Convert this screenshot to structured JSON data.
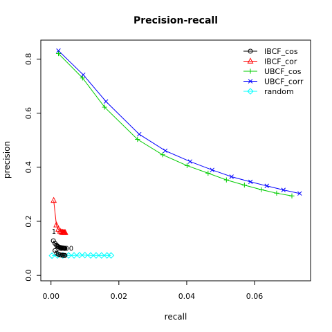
{
  "chart_data": {
    "type": "line",
    "title": "Precision-recall",
    "xlabel": "recall",
    "ylabel": "precision",
    "xlim": [
      -0.003,
      0.0765
    ],
    "ylim": [
      -0.02,
      0.87
    ],
    "xticks": [
      0.0,
      0.02,
      0.04,
      0.06
    ],
    "xtick_labels": [
      "0.00",
      "0.02",
      "0.04",
      "0.06"
    ],
    "yticks": [
      0.0,
      0.2,
      0.4,
      0.6,
      0.8
    ],
    "ytick_labels": [
      "0.0",
      "0.2",
      "0.4",
      "0.6",
      "0.8"
    ],
    "grid": false,
    "legend_position": "top-right",
    "series": [
      {
        "name": "IBCF_cos",
        "color": "#000000",
        "marker": "circle",
        "x": [
          0.0007,
          0.0012,
          0.0016,
          0.0019,
          0.0022,
          0.0025,
          0.0028,
          0.003,
          0.0032,
          0.0034,
          0.0036,
          0.0037,
          0.0038,
          0.0039,
          0.004,
          0.0041
        ],
        "y": [
          0.128,
          0.118,
          0.112,
          0.108,
          0.106,
          0.104,
          0.103,
          0.102,
          0.102,
          0.101,
          0.101,
          0.101,
          0.101,
          0.1,
          0.1,
          0.1
        ]
      },
      {
        "name": "IBCF_cor",
        "color": "#ff0000",
        "marker": "triangle",
        "x": [
          0.0008,
          0.0016,
          0.0022,
          0.0027,
          0.0031,
          0.0034,
          0.0036,
          0.0038,
          0.004,
          0.0042
        ],
        "y": [
          0.277,
          0.186,
          0.17,
          0.163,
          0.16,
          0.159,
          0.158,
          0.158,
          0.158,
          0.158
        ]
      },
      {
        "name": "UBCF_cos",
        "color": "#00cc00",
        "marker": "plus",
        "x": [
          0.0022,
          0.0093,
          0.0158,
          0.0255,
          0.0329,
          0.0401,
          0.0463,
          0.0517,
          0.057,
          0.062,
          0.0665,
          0.071
        ],
        "y": [
          0.82,
          0.73,
          0.622,
          0.503,
          0.446,
          0.406,
          0.378,
          0.353,
          0.334,
          0.317,
          0.304,
          0.294
        ]
      },
      {
        "name": "UBCF_corr",
        "color": "#0000ff",
        "marker": "x",
        "x": [
          0.0022,
          0.0095,
          0.0162,
          0.026,
          0.0337,
          0.041,
          0.0475,
          0.0532,
          0.0588,
          0.0636,
          0.0685,
          0.0733
        ],
        "y": [
          0.831,
          0.742,
          0.643,
          0.522,
          0.461,
          0.421,
          0.39,
          0.365,
          0.346,
          0.331,
          0.316,
          0.303
        ]
      },
      {
        "name": "random",
        "color": "#00ffff",
        "marker": "diamond",
        "x": [
          0.0003,
          0.0019,
          0.0035,
          0.0052,
          0.0068,
          0.0084,
          0.01,
          0.0117,
          0.0133,
          0.0149,
          0.0165,
          0.0177
        ],
        "y": [
          0.073,
          0.074,
          0.074,
          0.074,
          0.074,
          0.075,
          0.075,
          0.074,
          0.074,
          0.074,
          0.074,
          0.074
        ]
      },
      {
        "name": "",
        "color": "#000000",
        "marker": "circle",
        "x": [
          0.0012,
          0.0017,
          0.0022,
          0.0027,
          0.0031,
          0.0035,
          0.0038,
          0.0041
        ],
        "y": [
          0.092,
          0.082,
          0.078,
          0.076,
          0.075,
          0.075,
          0.074,
          0.074
        ]
      }
    ],
    "annotations": [
      {
        "text": "1",
        "x": 0.0002,
        "y": 0.164
      },
      {
        "text": "1",
        "x": 0.001,
        "y": 0.11
      },
      {
        "text": "5",
        "x": 0.0015,
        "y": 0.102
      },
      {
        "text": "10",
        "x": 0.0023,
        "y": 0.102
      },
      {
        "text": "00",
        "x": 0.004,
        "y": 0.102
      }
    ]
  }
}
